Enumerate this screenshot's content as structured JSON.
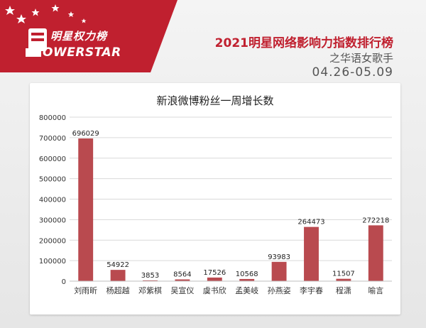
{
  "header": {
    "logo_cn": "明星权力榜",
    "logo_en": "OWERSTAR",
    "title": "2021明星网络影响力指数排行榜",
    "subtitle": "之华语女歌手",
    "date_range": "04.26-05.09"
  },
  "colors": {
    "brand_red": "#c0202f",
    "bar": "#b94a4f",
    "grid": "#d9d9d9"
  },
  "chart_data": {
    "type": "bar",
    "title": "新浪微博粉丝一周增长数",
    "categories": [
      "刘雨昕",
      "杨超越",
      "邓紫棋",
      "吴宣仪",
      "虞书欣",
      "孟美岐",
      "孙燕姿",
      "李宇春",
      "程潇",
      "喻言"
    ],
    "values": [
      696029,
      54922,
      3853,
      8564,
      17526,
      10568,
      93983,
      264473,
      11507,
      272218
    ],
    "ylim": [
      0,
      800000
    ],
    "yticks": [
      0,
      100000,
      200000,
      300000,
      400000,
      500000,
      600000,
      700000,
      800000
    ],
    "grid": true,
    "data_labels": true
  }
}
